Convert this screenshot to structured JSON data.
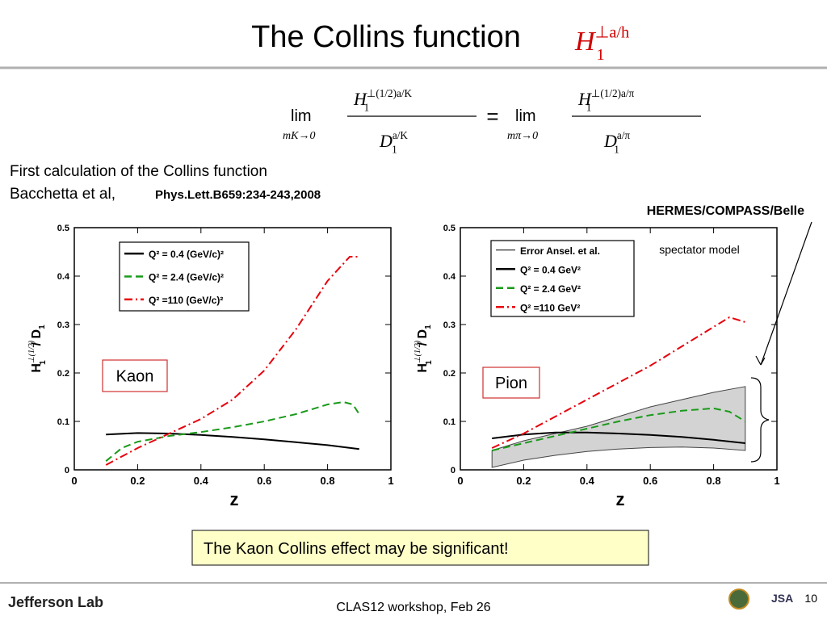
{
  "title": "The Collins function",
  "title_formula": {
    "base": "H",
    "sub": "1",
    "sup": "⊥a/h"
  },
  "formula": {
    "left": {
      "lim": "lim",
      "under": "mK→0",
      "num": {
        "base": "H",
        "sub": "1",
        "sup": "⊥(1/2)a/K"
      },
      "den": {
        "base": "D",
        "sub": "1",
        "sup": "a/K"
      }
    },
    "eq": "=",
    "right": {
      "lim": "lim",
      "under": "mπ→0",
      "num": {
        "base": "H",
        "sub": "1",
        "sup": "⊥(1/2)a/π"
      },
      "den": {
        "base": "D",
        "sub": "1",
        "sup": "a/π"
      }
    }
  },
  "subtitle": [
    "First calculation of the Collins function",
    "Bacchetta et al,"
  ],
  "reference": "Phys.Lett.B659:234-243,2008",
  "hermes_label": "HERMES/COMPASS/Belle",
  "conclusion": "The Kaon Collins effect may be significant!",
  "footer": {
    "event": "CLAS12 workshop,  Feb 26",
    "page": "10",
    "lab": "Jefferson Lab",
    "jsa": "JSA"
  },
  "chart_data": [
    {
      "type": "line",
      "tag": "Kaon",
      "xlabel": "z",
      "ylabel": {
        "base": "H",
        "sub": "1",
        "sup": "⊥(1/2)",
        "tail": "/ D",
        "tail_sub": "1"
      },
      "xlim": [
        0,
        1
      ],
      "xticks": [
        0,
        0.2,
        0.4,
        0.6,
        0.8,
        1
      ],
      "ylim": [
        0,
        0.5
      ],
      "yticks": [
        0,
        0.1,
        0.2,
        0.3,
        0.4,
        0.5
      ],
      "series": [
        {
          "name": "Q² = 0.4 (GeV/c)²",
          "color": "#000000",
          "style": "solid",
          "x": [
            0.1,
            0.2,
            0.3,
            0.4,
            0.5,
            0.6,
            0.7,
            0.8,
            0.9
          ],
          "values": [
            0.073,
            0.076,
            0.075,
            0.072,
            0.068,
            0.063,
            0.057,
            0.051,
            0.043
          ]
        },
        {
          "name": "Q² = 2.4 (GeV/c)²",
          "color": "#1a9a1a",
          "style": "dashed",
          "x": [
            0.1,
            0.15,
            0.2,
            0.3,
            0.4,
            0.5,
            0.6,
            0.7,
            0.8,
            0.85,
            0.88,
            0.9
          ],
          "values": [
            0.018,
            0.045,
            0.058,
            0.07,
            0.078,
            0.088,
            0.1,
            0.115,
            0.135,
            0.14,
            0.135,
            0.115
          ]
        },
        {
          "name": "Q² =110 (GeV/c)²",
          "color": "#e8000b",
          "style": "dashdot",
          "x": [
            0.1,
            0.2,
            0.3,
            0.4,
            0.5,
            0.6,
            0.7,
            0.8,
            0.87,
            0.9
          ],
          "values": [
            0.01,
            0.045,
            0.075,
            0.105,
            0.145,
            0.205,
            0.29,
            0.39,
            0.44,
            0.44
          ]
        }
      ]
    },
    {
      "type": "line",
      "tag": "Pion",
      "annotation": "spectator model",
      "xlabel": "z",
      "ylabel": {
        "base": "H",
        "sub": "1",
        "sup": "⊥(1/2)",
        "tail": "/ D",
        "tail_sub": "1"
      },
      "xlim": [
        0,
        1
      ],
      "xticks": [
        0,
        0.2,
        0.4,
        0.6,
        0.8,
        1
      ],
      "ylim": [
        0,
        0.5
      ],
      "yticks": [
        0,
        0.1,
        0.2,
        0.3,
        0.4,
        0.5
      ],
      "band": {
        "name": "Error Ansel. et al.",
        "color": "#d3d3d3",
        "x": [
          0.1,
          0.2,
          0.3,
          0.4,
          0.5,
          0.6,
          0.7,
          0.8,
          0.9
        ],
        "lower": [
          0.005,
          0.02,
          0.03,
          0.038,
          0.043,
          0.046,
          0.047,
          0.045,
          0.04
        ],
        "upper": [
          0.04,
          0.06,
          0.075,
          0.09,
          0.11,
          0.13,
          0.145,
          0.16,
          0.172
        ]
      },
      "series": [
        {
          "name": "Q² = 0.4 GeV²",
          "color": "#000000",
          "style": "solid",
          "x": [
            0.1,
            0.2,
            0.3,
            0.4,
            0.5,
            0.6,
            0.7,
            0.8,
            0.9
          ],
          "values": [
            0.065,
            0.073,
            0.077,
            0.077,
            0.075,
            0.072,
            0.068,
            0.062,
            0.055
          ]
        },
        {
          "name": "Q² = 2.4 GeV²",
          "color": "#1a9a1a",
          "style": "dashed",
          "x": [
            0.1,
            0.2,
            0.3,
            0.4,
            0.5,
            0.6,
            0.7,
            0.8,
            0.85,
            0.9
          ],
          "values": [
            0.04,
            0.055,
            0.07,
            0.085,
            0.1,
            0.113,
            0.122,
            0.127,
            0.12,
            0.1
          ]
        },
        {
          "name": "Q² =110 GeV²",
          "color": "#e8000b",
          "style": "dashdot",
          "x": [
            0.1,
            0.2,
            0.3,
            0.4,
            0.5,
            0.6,
            0.7,
            0.8,
            0.85,
            0.9
          ],
          "values": [
            0.045,
            0.075,
            0.11,
            0.145,
            0.18,
            0.215,
            0.255,
            0.295,
            0.315,
            0.305
          ]
        }
      ]
    }
  ]
}
